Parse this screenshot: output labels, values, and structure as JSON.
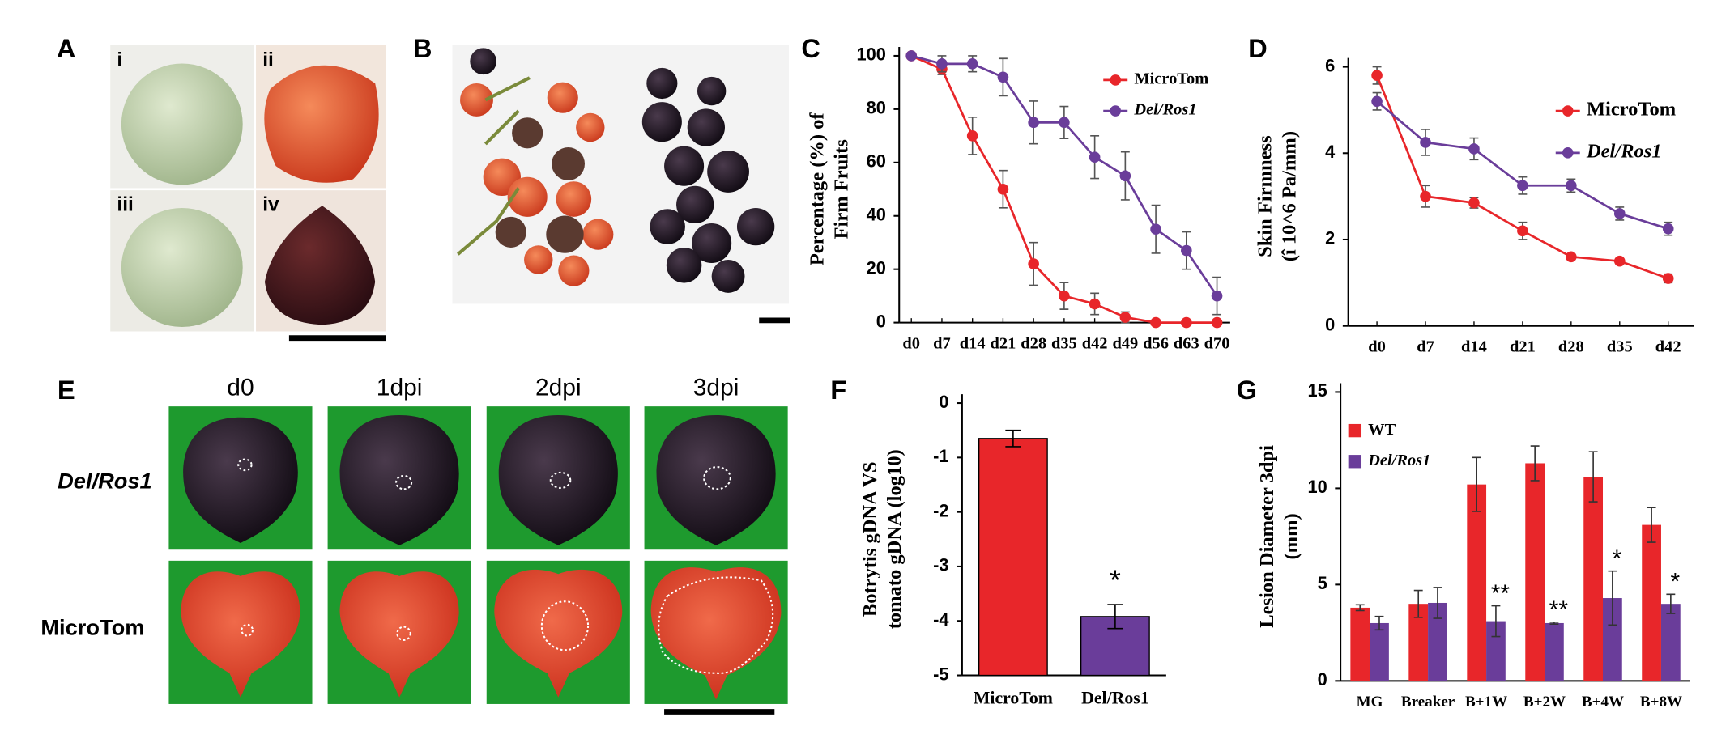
{
  "photos": {
    "A": {
      "label": "A",
      "sublabels": [
        "i",
        "ii",
        "iii",
        "iv"
      ]
    },
    "B": {
      "label": "B"
    },
    "E": {
      "label": "E",
      "columns": [
        "d0",
        "1dpi",
        "2dpi",
        "3dpi"
      ],
      "rows": [
        "Del/Ros1",
        "MicroTom"
      ]
    }
  },
  "chart_data": [
    {
      "type": "line",
      "panel": "C",
      "ylabel": [
        "Percentage (%) of",
        "Firm Fruits"
      ],
      "categories": [
        "d0",
        "d7",
        "d14",
        "d21",
        "d28",
        "d35",
        "d42",
        "d49",
        "d56",
        "d63",
        "d70"
      ],
      "ylim": [
        0,
        100
      ],
      "yticks": [
        0,
        20,
        40,
        60,
        80,
        100
      ],
      "series": [
        {
          "name": "MicroTom",
          "color": "#e8262a",
          "values": [
            100,
            95,
            70,
            50,
            22,
            10,
            7,
            2,
            0,
            0,
            0
          ],
          "errors": [
            0,
            2,
            7,
            7,
            8,
            5,
            4,
            2,
            0,
            0,
            0
          ]
        },
        {
          "name": "Del/Ros1",
          "color": "#6a3d9a",
          "italic": true,
          "values": [
            100,
            97,
            97,
            92,
            75,
            75,
            62,
            55,
            35,
            27,
            10
          ],
          "errors": [
            0,
            3,
            3,
            7,
            8,
            6,
            8,
            9,
            9,
            7,
            7
          ]
        }
      ]
    },
    {
      "type": "line",
      "panel": "D",
      "ylabel": [
        "Skin Firmness",
        "(î 10^6 Pa/mm)"
      ],
      "categories": [
        "d0",
        "d7",
        "d14",
        "d21",
        "d28",
        "d35",
        "d42"
      ],
      "ylim": [
        0,
        6
      ],
      "yticks": [
        0,
        2,
        4,
        6
      ],
      "series": [
        {
          "name": "MicroTom",
          "color": "#e8262a",
          "values": [
            5.8,
            3.0,
            2.85,
            2.2,
            1.6,
            1.5,
            1.1
          ],
          "errors": [
            0.2,
            0.25,
            0.12,
            0.2,
            0.05,
            0.05,
            0.1
          ]
        },
        {
          "name": "Del/Ros1",
          "color": "#6a3d9a",
          "italic": true,
          "values": [
            5.2,
            4.25,
            4.1,
            3.25,
            3.25,
            2.6,
            2.25
          ],
          "errors": [
            0.2,
            0.3,
            0.25,
            0.2,
            0.15,
            0.15,
            0.15
          ]
        }
      ]
    },
    {
      "type": "bar",
      "panel": "F",
      "ylabel": [
        "Botrytis gDNA VS",
        "tomato gDNA (log10)"
      ],
      "categories": [
        "MicroTom",
        "Del/Ros1"
      ],
      "values": [
        -0.65,
        -3.92
      ],
      "errors": [
        0.15,
        0.22
      ],
      "colors": [
        "#e8262a",
        "#6a3d9a"
      ],
      "significance": [
        null,
        "*"
      ],
      "ylim": [
        -5,
        0
      ],
      "yticks": [
        0,
        -1,
        -2,
        -3,
        -4,
        -5
      ]
    },
    {
      "type": "grouped-bar",
      "panel": "G",
      "ylabel": [
        "Lesion Diameter 3dpi",
        "(mm)"
      ],
      "categories": [
        "MG",
        "Breaker",
        "B+1W",
        "B+2W",
        "B+4W",
        "B+8W"
      ],
      "ylim": [
        0,
        15
      ],
      "yticks": [
        0,
        5,
        10,
        15
      ],
      "series": [
        {
          "name": "WT",
          "color": "#e8262a",
          "values": [
            3.8,
            4.0,
            10.2,
            11.3,
            10.6,
            8.1
          ],
          "errors": [
            0.15,
            0.7,
            1.4,
            0.9,
            1.3,
            0.9
          ]
        },
        {
          "name": "Del/Ros1",
          "color": "#6a3d9a",
          "italic": true,
          "values": [
            3.0,
            4.05,
            3.1,
            3.0,
            4.3,
            4.0
          ],
          "errors": [
            0.35,
            0.8,
            0.8,
            0.05,
            1.4,
            0.5
          ]
        }
      ],
      "significance": [
        null,
        null,
        "**",
        "**",
        "*",
        "*"
      ]
    }
  ]
}
